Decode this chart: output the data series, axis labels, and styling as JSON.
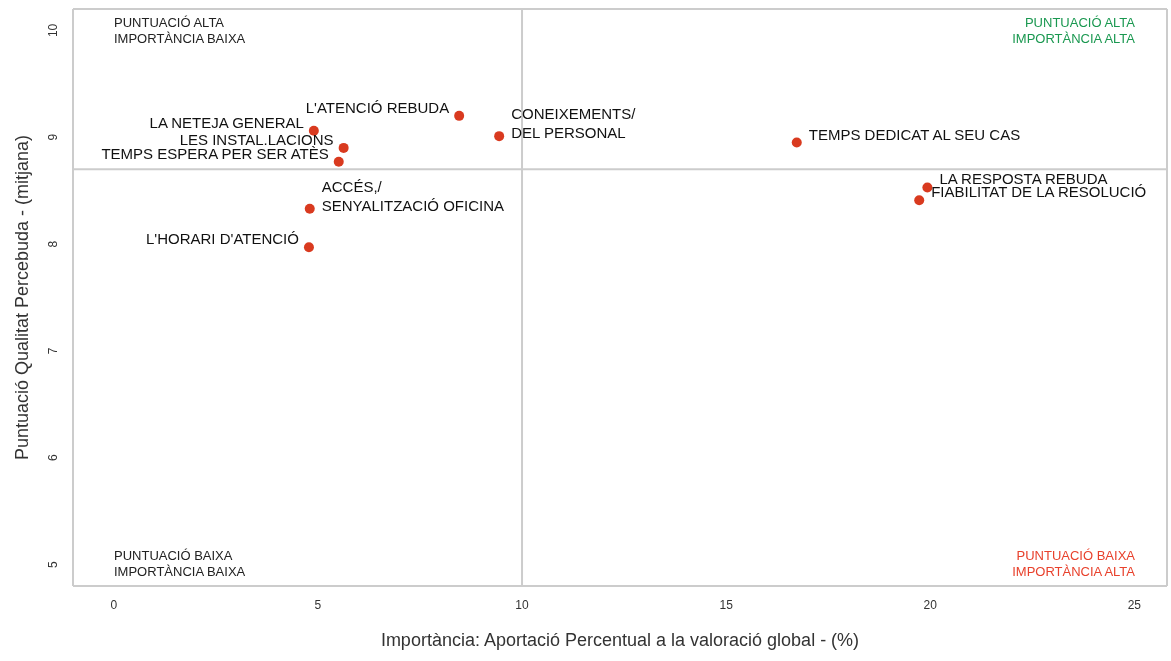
{
  "chart_data": {
    "type": "scatter",
    "xlabel": "Importància: Aportació Percentual a la valoració global - (%)",
    "ylabel": "Puntuació Qualitat Percebuda - (mitjana)",
    "x": [
      8.46,
      9.44,
      4.9,
      5.63,
      5.51,
      4.8,
      4.78,
      16.73,
      19.93,
      19.73
    ],
    "series": [
      {
        "color": "#d93a1f",
        "values": [
          9.2,
          9.01,
          9.06,
          8.9,
          8.77,
          8.33,
          7.97,
          8.95,
          8.53,
          8.41
        ]
      }
    ],
    "marker": "circle",
    "xlim": [
      -1,
      25.8
    ],
    "xticks": [
      0,
      5,
      10,
      15,
      20,
      25
    ],
    "ylim": [
      4.8,
      10.2
    ],
    "yticks": [
      5,
      6,
      7,
      8,
      9,
      10
    ],
    "ref_lines": [
      {
        "axis": "x",
        "value": 10,
        "color": "#cccccc"
      },
      {
        "axis": "y",
        "value": 8.7,
        "color": "#cccccc"
      }
    ],
    "annotations": [
      "PUNTUACIÓ ALTA\nIMPORTÀNCIA BAIXA",
      "PUNTUACIÓ ALTA\nIMPORTÀNCIA ALTA",
      "PUNTUACIÓ BAIXA\nIMPORTÀNCIA BAIXA",
      "PUNTUACIÓ BAIXA\nIMPORTÀNCIA ALTA",
      {
        "text": "L'ATENCIÓ REBUDA",
        "x": 8.46,
        "y": 9.2
      },
      {
        "text": "CONEIXEMENTS/\nDEL PERSONAL",
        "x": 9.44,
        "y": 9.01
      },
      {
        "text": "LA NETEJA GENERAL",
        "x": 4.9,
        "y": 9.06
      },
      {
        "text": "LES INSTAL.LACIONS",
        "x": 5.63,
        "y": 8.9
      },
      {
        "text": "TEMPS ESPERA PER SER ATÈS",
        "x": 5.51,
        "y": 8.77
      },
      {
        "text": "ACCÉS,/\nSENYALITZACIÓ OFICINA",
        "x": 4.8,
        "y": 8.33
      },
      {
        "text": "L'HORARI D'ATENCIÓ",
        "x": 4.78,
        "y": 7.97
      },
      {
        "text": "TEMPS DEDICAT AL SEU CAS",
        "x": 16.73,
        "y": 8.95
      },
      {
        "text": "LA RESPOSTA REBUDA",
        "x": 19.93,
        "y": 8.53
      },
      {
        "text": "FIABILITAT DE LA RESOLUCIÓ",
        "x": 19.73,
        "y": 8.41
      }
    ]
  }
}
